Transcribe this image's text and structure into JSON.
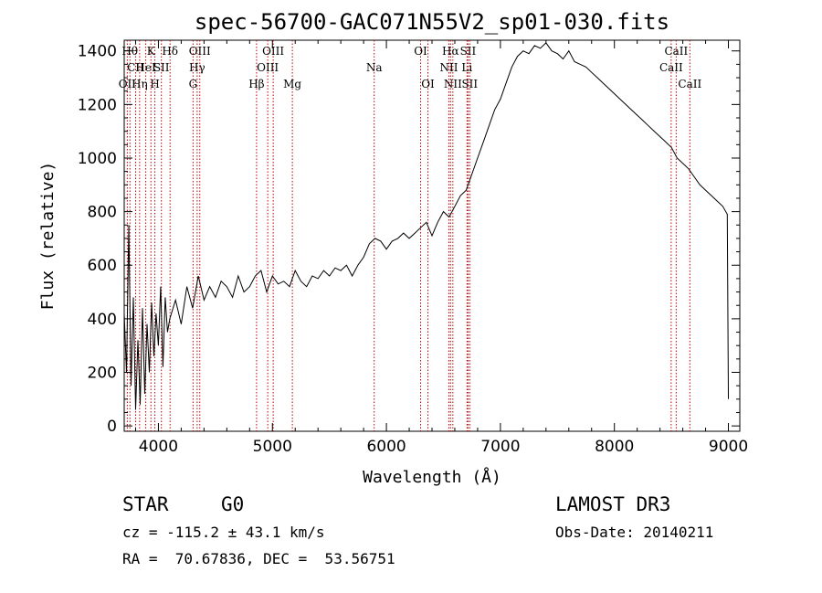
{
  "chart_data": {
    "type": "line",
    "title": "spec-56700-GAC071N55V2_sp01-030.fits",
    "xlabel": "Wavelength (Å)",
    "ylabel": "Flux (relative)",
    "xlim": [
      3700,
      9100
    ],
    "ylim": [
      -20,
      1440
    ],
    "xticks": [
      4000,
      5000,
      6000,
      7000,
      8000,
      9000
    ],
    "yticks": [
      0,
      200,
      400,
      600,
      800,
      1000,
      1200,
      1400
    ],
    "x": [
      3700,
      3720,
      3740,
      3760,
      3780,
      3800,
      3820,
      3840,
      3860,
      3880,
      3900,
      3920,
      3940,
      3960,
      3980,
      4000,
      4020,
      4040,
      4060,
      4080,
      4100,
      4150,
      4200,
      4250,
      4300,
      4350,
      4400,
      4450,
      4500,
      4550,
      4600,
      4650,
      4700,
      4750,
      4800,
      4850,
      4900,
      4950,
      5000,
      5050,
      5100,
      5150,
      5200,
      5250,
      5300,
      5350,
      5400,
      5450,
      5500,
      5550,
      5600,
      5650,
      5700,
      5750,
      5800,
      5850,
      5900,
      5950,
      6000,
      6050,
      6100,
      6150,
      6200,
      6250,
      6300,
      6350,
      6400,
      6450,
      6500,
      6550,
      6600,
      6650,
      6700,
      6750,
      6800,
      6850,
      6900,
      6950,
      7000,
      7050,
      7100,
      7150,
      7200,
      7250,
      7300,
      7350,
      7400,
      7450,
      7500,
      7550,
      7600,
      7650,
      7700,
      7750,
      7800,
      7850,
      7900,
      7950,
      8000,
      8050,
      8100,
      8150,
      8200,
      8250,
      8300,
      8350,
      8400,
      8450,
      8500,
      8550,
      8600,
      8650,
      8700,
      8750,
      8800,
      8850,
      8900,
      8950,
      8990,
      9000
    ],
    "values": [
      420,
      200,
      750,
      150,
      480,
      60,
      320,
      80,
      440,
      120,
      380,
      200,
      460,
      260,
      420,
      300,
      520,
      220,
      480,
      350,
      400,
      470,
      380,
      520,
      440,
      560,
      470,
      520,
      480,
      540,
      520,
      480,
      560,
      500,
      520,
      560,
      580,
      500,
      560,
      530,
      540,
      520,
      580,
      540,
      520,
      560,
      550,
      580,
      560,
      590,
      580,
      600,
      560,
      600,
      630,
      680,
      700,
      690,
      660,
      690,
      700,
      720,
      700,
      720,
      740,
      760,
      710,
      760,
      800,
      780,
      820,
      860,
      880,
      940,
      1000,
      1060,
      1120,
      1180,
      1220,
      1280,
      1340,
      1380,
      1400,
      1390,
      1420,
      1410,
      1430,
      1400,
      1390,
      1370,
      1400,
      1360,
      1350,
      1340,
      1320,
      1300,
      1280,
      1260,
      1240,
      1220,
      1200,
      1180,
      1160,
      1140,
      1120,
      1100,
      1080,
      1060,
      1040,
      1000,
      980,
      960,
      930,
      900,
      880,
      860,
      840,
      820,
      790,
      100
    ],
    "lines": [
      {
        "x": 3727,
        "label": "OII",
        "row": 3
      },
      {
        "x": 3750,
        "label": "Hθ",
        "row": 1
      },
      {
        "x": 3800,
        "label": "CII",
        "row": 2
      },
      {
        "x": 3835,
        "label": "Hη",
        "row": 3
      },
      {
        "x": 3889,
        "label": "HeI",
        "row": 2
      },
      {
        "x": 3934,
        "label": "K",
        "row": 1
      },
      {
        "x": 3969,
        "label": "H",
        "row": 3
      },
      {
        "x": 4026,
        "label": "SII",
        "row": 2
      },
      {
        "x": 4102,
        "label": "Hδ",
        "row": 1
      },
      {
        "x": 4304,
        "label": "G",
        "row": 3
      },
      {
        "x": 4340,
        "label": "Hγ",
        "row": 2
      },
      {
        "x": 4363,
        "label": "OIII",
        "row": 1
      },
      {
        "x": 4861,
        "label": "Hβ",
        "row": 3
      },
      {
        "x": 4959,
        "label": "OIII",
        "row": 2
      },
      {
        "x": 5007,
        "label": "OIII",
        "row": 1
      },
      {
        "x": 5175,
        "label": "Mg",
        "row": 3
      },
      {
        "x": 5893,
        "label": "Na",
        "row": 2
      },
      {
        "x": 6300,
        "label": "OI",
        "row": 1
      },
      {
        "x": 6364,
        "label": "OI",
        "row": 3
      },
      {
        "x": 6548,
        "label": "NII",
        "row": 2
      },
      {
        "x": 6563,
        "label": "Hα",
        "row": 1
      },
      {
        "x": 6583,
        "label": "NII",
        "row": 3
      },
      {
        "x": 6707,
        "label": "Li",
        "row": 2
      },
      {
        "x": 6716,
        "label": "SII",
        "row": 1
      },
      {
        "x": 6731,
        "label": "SII",
        "row": 3
      },
      {
        "x": 8498,
        "label": "CaII",
        "row": 2
      },
      {
        "x": 8542,
        "label": "CaII",
        "row": 1
      },
      {
        "x": 8662,
        "label": "CaII",
        "row": 3
      }
    ]
  },
  "info": {
    "object_class": "STAR",
    "subclass": "G0",
    "survey": "LAMOST DR3",
    "redshift": "cz = -115.2 ± 43.1 km/s",
    "obs_date": "Obs-Date: 20140211",
    "coords": "RA =  70.67836, DEC =  53.56751"
  },
  "colors": {
    "axis": "#000000",
    "spectrum": "#000000",
    "line_marker": "#c00000"
  }
}
